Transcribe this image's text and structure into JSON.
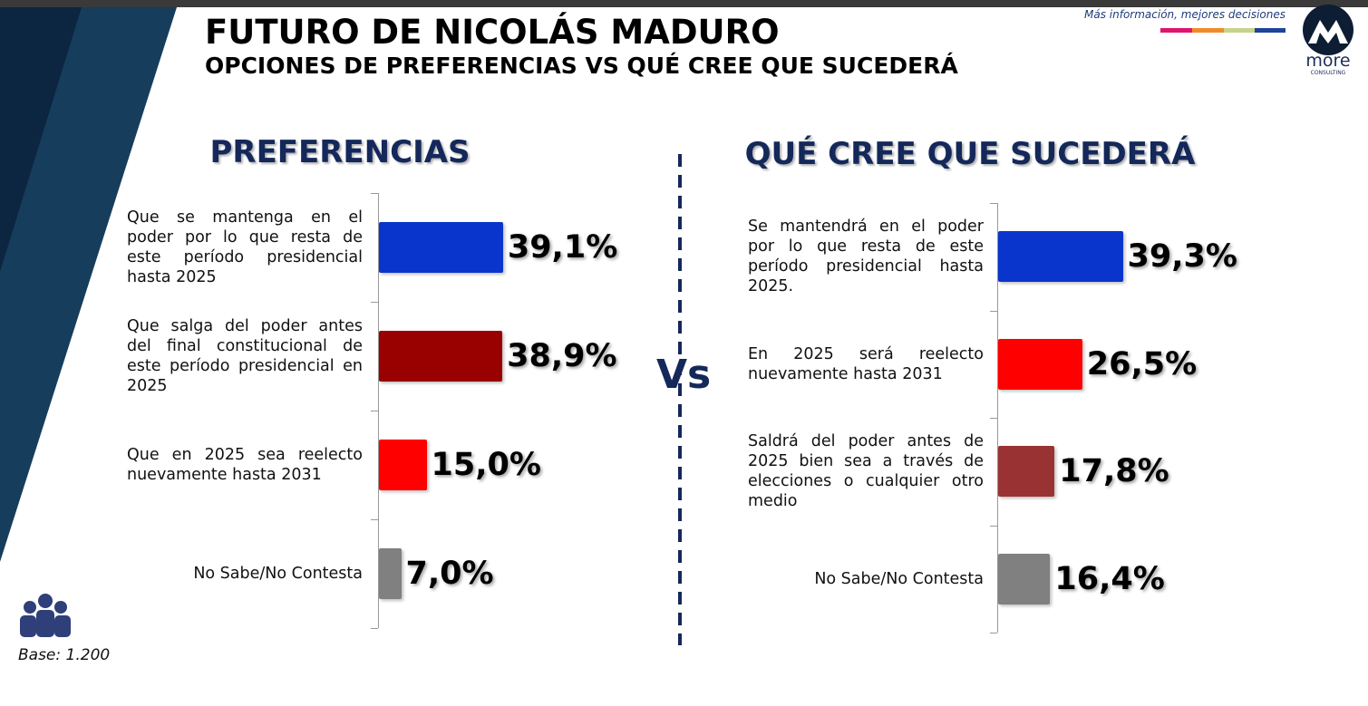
{
  "header": {
    "title": "FUTURO DE NICOLÁS MADURO",
    "subtitle": "OPCIONES DE PREFERENCIAS VS QUÉ CREE QUE SUCEDERÁ",
    "tagline": "Más información, mejores decisiones",
    "logo_name": "more",
    "logo_sub": "CONSULTING"
  },
  "vs": "Vs",
  "base": "Base: 1.200",
  "chart_data": [
    {
      "type": "bar",
      "orientation": "horizontal",
      "title": "PREFERENCIAS",
      "categories": [
        "Que se mantenga en el poder por lo que resta de este período presidencial hasta 2025",
        "Que salga del poder antes del final constitucional de este período presidencial en 2025",
        "Que en 2025 sea reelecto nuevamente hasta 2031",
        "No Sabe/No Contesta"
      ],
      "values": [
        39.1,
        38.9,
        15.0,
        7.0
      ],
      "value_labels": [
        "39,1%",
        "38,9%",
        "15,0%",
        "7,0%"
      ],
      "colors": [
        "#0a35cc",
        "#990000",
        "#ff0000",
        "#808080"
      ]
    },
    {
      "type": "bar",
      "orientation": "horizontal",
      "title": "QUÉ CREE QUE SUCEDERÁ",
      "categories": [
        "Se mantendrá en el poder por lo que resta de este período presidencial hasta 2025.",
        "En 2025 será reelecto nuevamente hasta 2031",
        "Saldrá del poder antes de 2025 bien sea a través de elecciones o cualquier otro medio",
        "No Sabe/No Contesta"
      ],
      "values": [
        39.3,
        26.5,
        17.8,
        16.4
      ],
      "value_labels": [
        "39,3%",
        "26,5%",
        "17,8%",
        "16,4%"
      ],
      "colors": [
        "#0a35cc",
        "#ff0000",
        "#993333",
        "#808080"
      ]
    }
  ]
}
